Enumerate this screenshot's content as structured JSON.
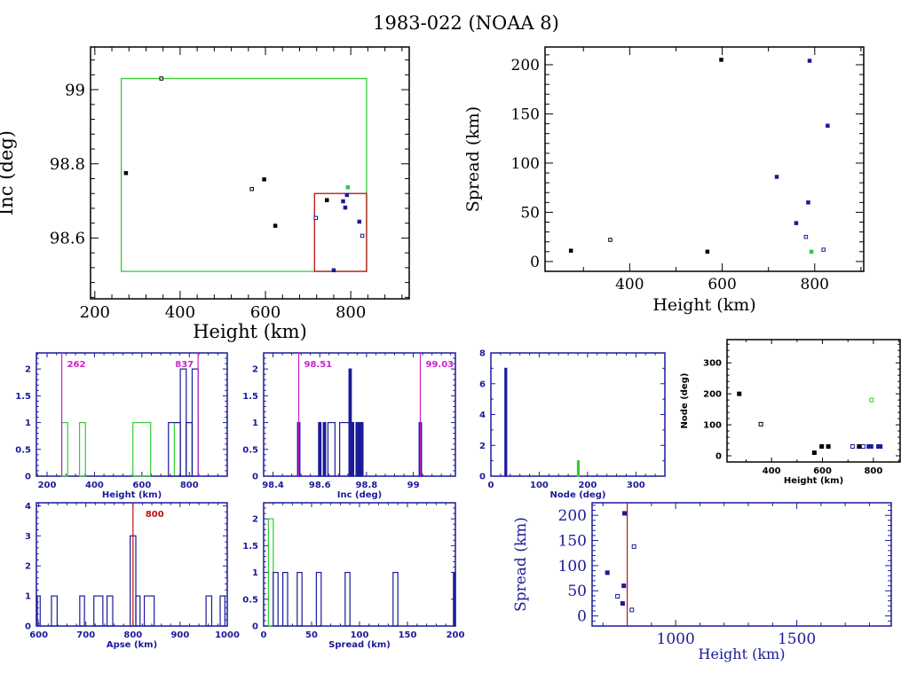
{
  "title": "1983-022 (NOAA 8)",
  "colors": {
    "black": "#000000",
    "navy": "#1a1a9a",
    "green": "#33cc33",
    "magenta": "#cc22cc",
    "red": "#bb1111"
  },
  "chart_data": [
    {
      "id": "inc-vs-height",
      "type": "scatter",
      "xlabel": "Height (km)",
      "ylabel": "Inc (deg)",
      "xlim": [
        190,
        937
      ],
      "ylim": [
        98.436,
        99.115
      ],
      "xticks": [
        200,
        400,
        600,
        800
      ],
      "yticks": [
        98.6,
        98.8,
        99
      ],
      "ytick_labels": [
        "98.6",
        "98.8",
        "99"
      ],
      "boxes": [
        {
          "name": "green-box",
          "color": "green",
          "x": [
            262,
            837
          ],
          "y": [
            98.51,
            99.03
          ]
        },
        {
          "name": "red-box",
          "color": "red",
          "x": [
            715,
            837
          ],
          "y": [
            98.51,
            98.72
          ]
        }
      ],
      "points": [
        {
          "x": 356,
          "y": 99.03,
          "color": "black",
          "hollow": true
        },
        {
          "x": 273,
          "y": 98.775,
          "color": "black",
          "hollow": false
        },
        {
          "x": 597,
          "y": 98.758,
          "color": "black",
          "hollow": false
        },
        {
          "x": 568,
          "y": 98.732,
          "color": "black",
          "hollow": true
        },
        {
          "x": 623,
          "y": 98.633,
          "color": "black",
          "hollow": false
        },
        {
          "x": 744,
          "y": 98.702,
          "color": "black",
          "hollow": false
        },
        {
          "x": 793,
          "y": 98.737,
          "color": "green",
          "hollow": false
        },
        {
          "x": 791,
          "y": 98.716,
          "color": "navy",
          "hollow": false
        },
        {
          "x": 782,
          "y": 98.699,
          "color": "navy",
          "hollow": false
        },
        {
          "x": 787,
          "y": 98.682,
          "color": "navy",
          "hollow": false
        },
        {
          "x": 718,
          "y": 98.654,
          "color": "navy",
          "hollow": true
        },
        {
          "x": 820,
          "y": 98.644,
          "color": "navy",
          "hollow": false
        },
        {
          "x": 827,
          "y": 98.606,
          "color": "navy",
          "hollow": true
        },
        {
          "x": 760,
          "y": 98.513,
          "color": "navy",
          "hollow": false
        }
      ]
    },
    {
      "id": "spread-vs-height",
      "type": "scatter",
      "xlabel": "Height (km)",
      "ylabel": "Spread (km)",
      "xlim": [
        217,
        906
      ],
      "ylim": [
        -10,
        218
      ],
      "xticks": [
        400,
        600,
        800
      ],
      "yticks": [
        0,
        50,
        100,
        150,
        200
      ],
      "points": [
        {
          "x": 273,
          "y": 11,
          "color": "black",
          "hollow": false
        },
        {
          "x": 358,
          "y": 22,
          "color": "black",
          "hollow": true
        },
        {
          "x": 568,
          "y": 10,
          "color": "black",
          "hollow": false
        },
        {
          "x": 598,
          "y": 205,
          "color": "black",
          "hollow": false
        },
        {
          "x": 789,
          "y": 204,
          "color": "navy",
          "hollow": false
        },
        {
          "x": 828,
          "y": 138,
          "color": "navy",
          "hollow": false
        },
        {
          "x": 718,
          "y": 86,
          "color": "navy",
          "hollow": false
        },
        {
          "x": 786,
          "y": 60,
          "color": "navy",
          "hollow": false
        },
        {
          "x": 760,
          "y": 39,
          "color": "navy",
          "hollow": false
        },
        {
          "x": 781,
          "y": 25,
          "color": "navy",
          "hollow": true
        },
        {
          "x": 793,
          "y": 10,
          "color": "green",
          "hollow": false
        },
        {
          "x": 819,
          "y": 12,
          "color": "navy",
          "hollow": true
        }
      ]
    },
    {
      "id": "height-histogram",
      "type": "bar",
      "xlabel": "Height (km)",
      "ylabel": "",
      "xlim": [
        155,
        960
      ],
      "ylim": [
        0,
        2.3
      ],
      "xticks": [
        200,
        400,
        600,
        800
      ],
      "yticks": [
        0,
        0.5,
        1,
        1.5,
        2
      ],
      "ytick_labels": [
        "0",
        "0.5",
        "1",
        "1.5",
        "2"
      ],
      "markers": [
        {
          "x": 262,
          "label": "262",
          "color": "magenta",
          "label_side": "right"
        },
        {
          "x": 837,
          "label": "837",
          "color": "magenta",
          "label_side": "left"
        }
      ],
      "series": [
        {
          "name": "green",
          "color": "green",
          "bins": [
            [
              262,
              287,
              1
            ],
            [
              337,
              362,
              1
            ],
            [
              562,
              637,
              1
            ],
            [
              737,
              762,
              1
            ],
            [
              787,
              812,
              1
            ]
          ]
        },
        {
          "name": "navy",
          "color": "navy",
          "bins": [
            [
              712,
              762,
              1
            ],
            [
              762,
              787,
              2
            ],
            [
              787,
              812,
              1
            ],
            [
              812,
              837,
              2
            ]
          ]
        }
      ]
    },
    {
      "id": "inc-histogram",
      "type": "bar",
      "xlabel": "Inc (deg)",
      "ylabel": "",
      "xlim": [
        98.36,
        99.18
      ],
      "ylim": [
        0,
        2.3
      ],
      "xticks": [
        98.4,
        98.6,
        98.8,
        99
      ],
      "xtick_labels": [
        "98.4",
        "98.6",
        "98.8",
        "99"
      ],
      "yticks": [
        0,
        0.5,
        1,
        1.5,
        2
      ],
      "ytick_labels": [
        "0",
        "0.5",
        "1",
        "1.5",
        "2"
      ],
      "markers": [
        {
          "x": 98.51,
          "label": "98.51",
          "color": "magenta",
          "label_side": "right"
        },
        {
          "x": 99.03,
          "label": "99.03",
          "color": "magenta",
          "label_side": "right"
        }
      ],
      "series": [
        {
          "name": "navy",
          "color": "navy",
          "bins": [
            [
              98.505,
              98.515,
              1
            ],
            [
              98.595,
              98.605,
              1
            ],
            [
              98.615,
              98.625,
              1
            ],
            [
              98.635,
              98.665,
              1
            ],
            [
              98.685,
              98.725,
              1
            ],
            [
              98.725,
              98.735,
              2
            ],
            [
              98.735,
              98.745,
              1
            ],
            [
              98.755,
              98.765,
              1
            ],
            [
              98.765,
              98.775,
              1
            ],
            [
              98.775,
              98.785,
              1
            ],
            [
              99.025,
              99.035,
              1
            ]
          ]
        }
      ]
    },
    {
      "id": "node-histogram",
      "type": "bar",
      "xlabel": "Node (deg)",
      "ylabel": "",
      "xlim": [
        0,
        360
      ],
      "ylim": [
        0,
        8
      ],
      "xticks": [
        0,
        100,
        200,
        300
      ],
      "yticks": [
        0,
        2,
        4,
        6,
        8
      ],
      "series": [
        {
          "name": "navy",
          "color": "navy",
          "bins": [
            [
              29,
              31,
              7
            ]
          ]
        },
        {
          "name": "green",
          "color": "green",
          "bins": [
            [
              179,
              181,
              1
            ]
          ]
        }
      ]
    },
    {
      "id": "node-vs-height",
      "type": "scatter",
      "xlabel": "Height (km)",
      "ylabel": "Node (deg)",
      "xlim": [
        225,
        905
      ],
      "ylim": [
        -20,
        375
      ],
      "xticks": [
        400,
        600,
        800
      ],
      "yticks": [
        0,
        100,
        200,
        300
      ],
      "points": [
        {
          "x": 273,
          "y": 200,
          "color": "black",
          "hollow": false
        },
        {
          "x": 358,
          "y": 102,
          "color": "black",
          "hollow": true
        },
        {
          "x": 568,
          "y": 10,
          "color": "black",
          "hollow": false
        },
        {
          "x": 597,
          "y": 30,
          "color": "black",
          "hollow": false
        },
        {
          "x": 623,
          "y": 30,
          "color": "black",
          "hollow": false
        },
        {
          "x": 793,
          "y": 180,
          "color": "green",
          "hollow": true
        },
        {
          "x": 718,
          "y": 30,
          "color": "navy",
          "hollow": true
        },
        {
          "x": 744,
          "y": 30,
          "color": "black",
          "hollow": false
        },
        {
          "x": 760,
          "y": 30,
          "color": "navy",
          "hollow": true
        },
        {
          "x": 782,
          "y": 30,
          "color": "navy",
          "hollow": false
        },
        {
          "x": 791,
          "y": 30,
          "color": "navy",
          "hollow": false
        },
        {
          "x": 820,
          "y": 30,
          "color": "navy",
          "hollow": false
        },
        {
          "x": 827,
          "y": 30,
          "color": "navy",
          "hollow": false
        }
      ]
    },
    {
      "id": "apse-histogram",
      "type": "bar",
      "xlabel": "Apse (km)",
      "ylabel": "",
      "xlim": [
        595,
        1000
      ],
      "ylim": [
        0,
        4.1
      ],
      "xticks": [
        600,
        700,
        800,
        900,
        1000
      ],
      "yticks": [
        0,
        1,
        2,
        3,
        4
      ],
      "markers": [
        {
          "x": 800,
          "label": "800",
          "color": "red",
          "label_side": "right"
        }
      ],
      "series": [
        {
          "name": "navy",
          "color": "navy",
          "bins": [
            [
              597,
              603,
              1
            ],
            [
              627,
              639,
              1
            ],
            [
              687,
              697,
              1
            ],
            [
              717,
              736,
              1
            ],
            [
              745,
              757,
              1
            ],
            [
              794,
              806,
              3
            ],
            [
              806,
              815,
              1
            ],
            [
              824,
              845,
              1
            ],
            [
              955,
              967,
              1
            ],
            [
              985,
              995,
              1
            ]
          ]
        }
      ]
    },
    {
      "id": "spread-histogram",
      "type": "bar",
      "xlabel": "Spread (km)",
      "ylabel": "",
      "xlim": [
        0,
        200
      ],
      "ylim": [
        0,
        2.3
      ],
      "xticks": [
        0,
        50,
        100,
        150,
        200
      ],
      "yticks": [
        0,
        0.5,
        1,
        1.5,
        2
      ],
      "ytick_labels": [
        "0",
        "0.5",
        "1",
        "1.5",
        "2"
      ],
      "series": [
        {
          "name": "green",
          "color": "green",
          "bins": [
            [
              5,
              10,
              2
            ]
          ]
        },
        {
          "name": "navy",
          "color": "navy",
          "bins": [
            [
              10,
              15,
              1
            ],
            [
              20,
              25,
              1
            ],
            [
              35,
              40,
              1
            ],
            [
              55,
              60,
              1
            ],
            [
              85,
              90,
              1
            ],
            [
              135,
              140,
              1
            ],
            [
              198,
              200,
              1
            ]
          ]
        }
      ]
    },
    {
      "id": "spread-vs-height-wide",
      "type": "scatter",
      "xlabel": "Height (km)",
      "ylabel": "Spread (km)",
      "xlim": [
        655,
        1890
      ],
      "ylim": [
        -20,
        225
      ],
      "xticks": [
        1000,
        1500
      ],
      "yticks": [
        0,
        50,
        100,
        150,
        200
      ],
      "markers": [
        {
          "x": 800,
          "label": "",
          "color": "red"
        }
      ],
      "points": [
        {
          "x": 789,
          "y": 204,
          "color": "navy",
          "hollow": false
        },
        {
          "x": 828,
          "y": 138,
          "color": "navy",
          "hollow": true
        },
        {
          "x": 718,
          "y": 86,
          "color": "navy",
          "hollow": false
        },
        {
          "x": 786,
          "y": 60,
          "color": "navy",
          "hollow": false
        },
        {
          "x": 760,
          "y": 39,
          "color": "navy",
          "hollow": true
        },
        {
          "x": 781,
          "y": 25,
          "color": "navy",
          "hollow": false
        },
        {
          "x": 819,
          "y": 12,
          "color": "navy",
          "hollow": true
        }
      ]
    }
  ]
}
